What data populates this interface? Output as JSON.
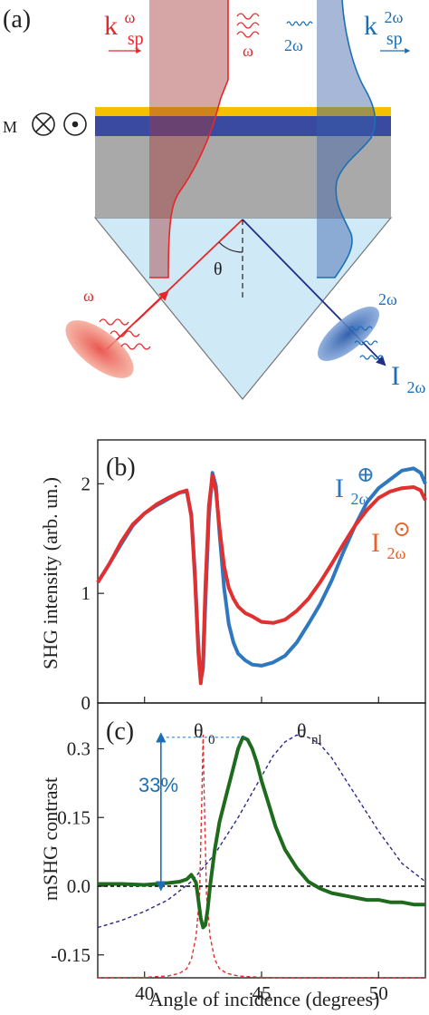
{
  "panel_a": {
    "label": "(a)",
    "magnetization_label": "M",
    "k_omega": {
      "base": "k",
      "sup": "ω",
      "sub": "sp"
    },
    "k_2omega": {
      "base": "k",
      "sup": "2ω",
      "sub": "sp"
    },
    "omega_label": "ω",
    "two_omega_label": "2ω",
    "omega_label_incident": "ω",
    "two_omega_label_out": "2ω",
    "theta_label": "θ",
    "I_out": {
      "base": "I",
      "sub": "2ω"
    },
    "colors": {
      "red": "#e8262a",
      "blue": "#1d6fb5",
      "gold": "#f5c000",
      "navy": "#3a4aa0",
      "gray": "#a9a9a9",
      "prism": "#cfe9f7"
    }
  },
  "panel_b": {
    "label": "(b)",
    "legend_plus": {
      "base": "I",
      "sub": "2ω",
      "sup": "⊕"
    },
    "legend_dot": {
      "base": "I",
      "sub": "2ω",
      "sup": "⊙"
    }
  },
  "panel_c": {
    "label": "(c)",
    "theta0_label": "θ",
    "theta0_sub": "0",
    "thetanl_label": "θ",
    "thetanl_sub": "nl",
    "contrast_annotation": "33%"
  },
  "x_axis_title": "Angle of incidence (degrees)",
  "chart_data": [
    {
      "type": "line",
      "title": "",
      "xlabel": "",
      "ylabel": "SHG intensity (arb. un.)",
      "xlim": [
        38,
        52
      ],
      "ylim": [
        0,
        2.4
      ],
      "yticks": [
        0,
        1,
        2
      ],
      "series": [
        {
          "name": "I2ω⊕",
          "color": "#2f78c0",
          "x": [
            38,
            38.5,
            39,
            39.5,
            40,
            40.5,
            41,
            41.5,
            41.8,
            42.0,
            42.15,
            42.3,
            42.4,
            42.5,
            42.6,
            42.75,
            42.9,
            43.05,
            43.2,
            43.4,
            43.6,
            43.8,
            44,
            44.3,
            44.6,
            45,
            45.5,
            46,
            46.5,
            47,
            47.5,
            48,
            48.5,
            49,
            49.5,
            50,
            50.5,
            51,
            51.5,
            51.8,
            52
          ],
          "values": [
            1.1,
            1.27,
            1.45,
            1.62,
            1.73,
            1.8,
            1.86,
            1.92,
            1.93,
            1.72,
            1.2,
            0.52,
            0.2,
            0.32,
            0.9,
            1.7,
            2.1,
            1.98,
            1.55,
            1.05,
            0.72,
            0.55,
            0.45,
            0.39,
            0.35,
            0.34,
            0.37,
            0.43,
            0.55,
            0.72,
            0.9,
            1.12,
            1.38,
            1.62,
            1.83,
            1.96,
            2.04,
            2.12,
            2.14,
            2.1,
            2.0
          ]
        },
        {
          "name": "I2ω⊙",
          "color": "#e03030",
          "x": [
            38,
            38.5,
            39,
            39.5,
            40,
            40.5,
            41,
            41.5,
            41.8,
            42.0,
            42.15,
            42.3,
            42.4,
            42.5,
            42.6,
            42.75,
            42.9,
            43.05,
            43.2,
            43.4,
            43.6,
            43.8,
            44,
            44.3,
            44.6,
            45,
            45.5,
            46,
            46.5,
            47,
            47.5,
            48,
            48.5,
            49,
            49.5,
            50,
            50.5,
            51,
            51.5,
            51.8,
            52
          ],
          "values": [
            1.1,
            1.27,
            1.47,
            1.63,
            1.73,
            1.81,
            1.87,
            1.92,
            1.94,
            1.7,
            1.15,
            0.45,
            0.18,
            0.4,
            1.05,
            1.8,
            2.08,
            1.93,
            1.6,
            1.25,
            1.05,
            0.95,
            0.88,
            0.82,
            0.79,
            0.74,
            0.73,
            0.76,
            0.84,
            0.95,
            1.1,
            1.27,
            1.45,
            1.62,
            1.76,
            1.87,
            1.93,
            1.96,
            1.97,
            1.94,
            1.85
          ]
        }
      ]
    },
    {
      "type": "line",
      "title": "",
      "xlabel": "Angle of incidence (degrees)",
      "ylabel": "mSHG contrast",
      "xlim": [
        38,
        52
      ],
      "ylim": [
        -0.2,
        0.4
      ],
      "yticks": [
        -0.15,
        0.0,
        0.15,
        0.3
      ],
      "xticks": [
        40,
        45,
        50
      ],
      "series": [
        {
          "name": "mSHG contrast",
          "color": "#1e6b1e",
          "x": [
            38,
            39,
            40,
            40.5,
            41,
            41.5,
            41.8,
            42.0,
            42.2,
            42.3,
            42.4,
            42.5,
            42.6,
            42.7,
            42.8,
            43.0,
            43.2,
            43.5,
            43.8,
            44.0,
            44.2,
            44.4,
            44.6,
            44.8,
            45.0,
            45.3,
            45.6,
            46.0,
            46.5,
            47.0,
            47.5,
            48,
            48.5,
            49,
            49.5,
            50,
            50.5,
            51,
            51.5,
            52
          ],
          "values": [
            0.005,
            0.005,
            0.003,
            0.005,
            0.007,
            0.01,
            0.015,
            0.025,
            0.008,
            -0.03,
            -0.07,
            -0.09,
            -0.085,
            -0.05,
            0.0,
            0.08,
            0.14,
            0.2,
            0.26,
            0.3,
            0.325,
            0.32,
            0.3,
            0.27,
            0.23,
            0.18,
            0.13,
            0.08,
            0.04,
            0.01,
            -0.005,
            -0.015,
            -0.02,
            -0.025,
            -0.03,
            -0.03,
            -0.035,
            -0.035,
            -0.04,
            -0.04
          ]
        },
        {
          "name": "",
          "color": "#e03030",
          "dashed": true,
          "x": [
            38,
            40,
            41,
            41.5,
            41.8,
            42.0,
            42.2,
            42.35,
            42.45,
            42.5,
            42.55,
            42.65,
            42.8,
            43.0,
            43.2,
            43.5,
            44,
            45,
            46,
            48,
            52
          ],
          "values": [
            -0.2,
            -0.199,
            -0.196,
            -0.19,
            -0.18,
            -0.16,
            -0.11,
            -0.02,
            0.2,
            0.33,
            0.2,
            -0.02,
            -0.11,
            -0.16,
            -0.18,
            -0.19,
            -0.196,
            -0.199,
            -0.2,
            -0.2,
            -0.2
          ]
        },
        {
          "name": "",
          "color": "#2a2a8a",
          "dashed": true,
          "x": [
            38,
            39,
            40,
            41,
            42,
            43,
            44,
            45,
            45.5,
            46,
            46.5,
            47,
            47.5,
            48,
            49,
            50,
            51,
            52
          ],
          "values": [
            -0.09,
            -0.075,
            -0.055,
            -0.03,
            0.01,
            0.07,
            0.15,
            0.24,
            0.285,
            0.315,
            0.33,
            0.325,
            0.31,
            0.28,
            0.2,
            0.12,
            0.05,
            0.01
          ]
        },
        {
          "name": "",
          "color": "#000000",
          "dashed": true,
          "x": [
            38,
            52
          ],
          "values": [
            0.0,
            0.0
          ]
        }
      ]
    }
  ]
}
